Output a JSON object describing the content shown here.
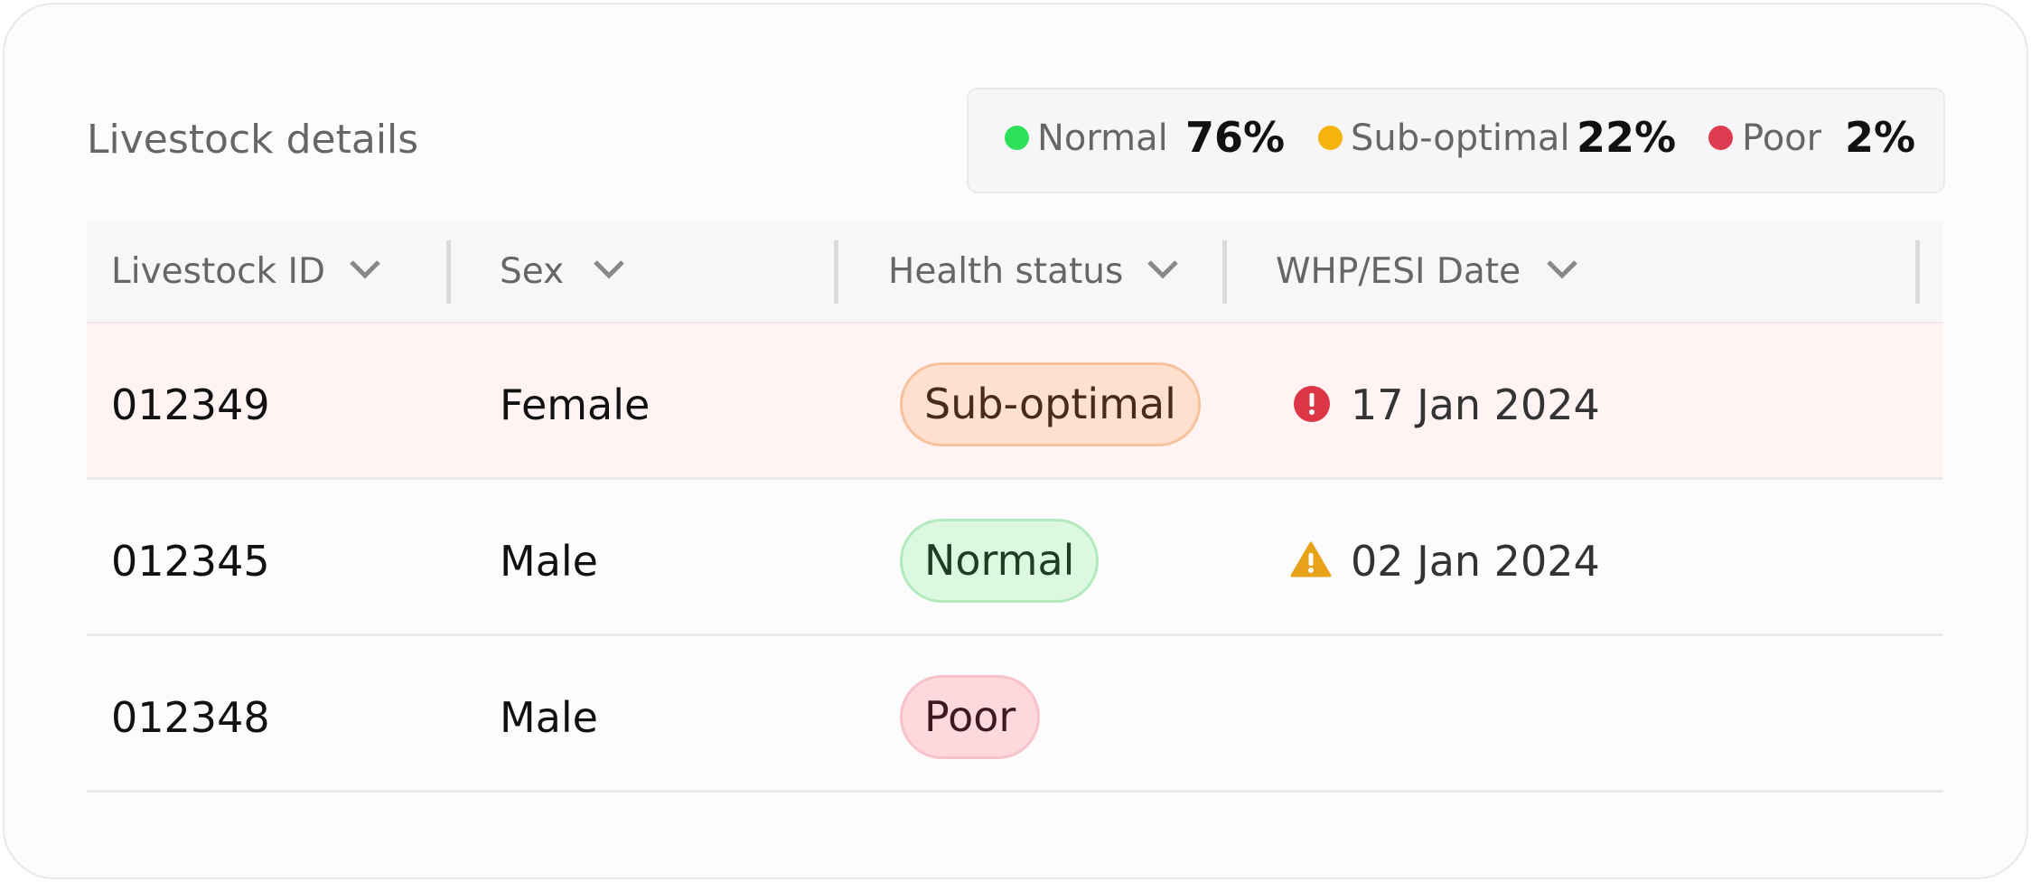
{
  "header": {
    "title": "Livestock details"
  },
  "summary": [
    {
      "label": "Normal",
      "value": "76%"
    },
    {
      "label": "Sub-optimal",
      "value": "22%"
    },
    {
      "label": "Poor",
      "value": "2%"
    }
  ],
  "table": {
    "columns": [
      "Livestock ID",
      "Sex",
      "Health status",
      "WHP/ESI Date"
    ],
    "rows": [
      [
        "012349",
        "Female",
        "Sub-optimal",
        "17 Jan 2024"
      ],
      [
        "012345",
        "Male",
        "Normal",
        "02 Jan 2024"
      ],
      [
        "012348",
        "Male",
        "Poor"
      ]
    ]
  }
}
